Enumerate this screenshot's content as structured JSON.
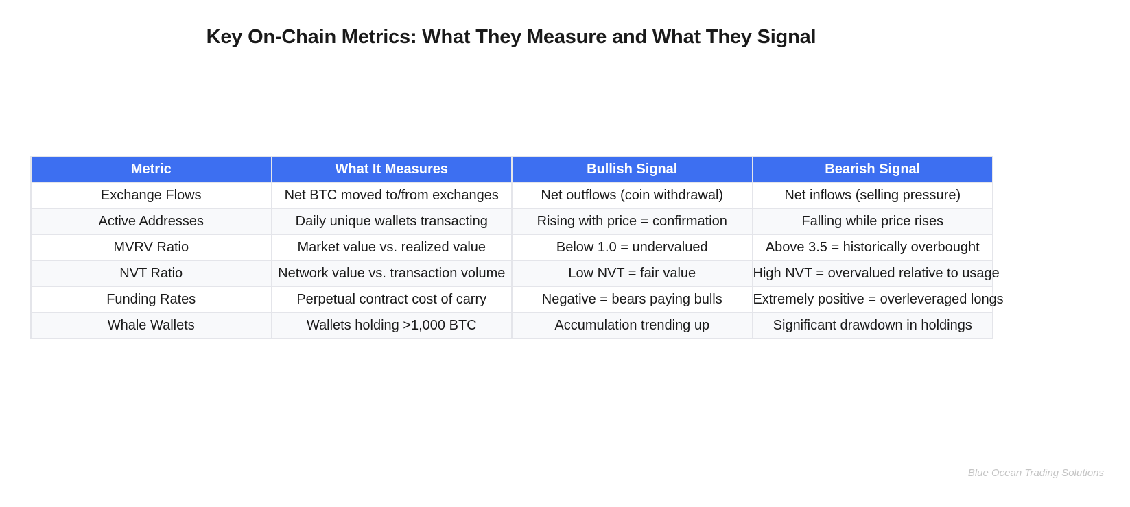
{
  "title": "Key On-Chain Metrics: What They Measure and What They Signal",
  "table": {
    "headers": [
      "Metric",
      "What It Measures",
      "Bullish Signal",
      "Bearish Signal"
    ],
    "rows": [
      [
        "Exchange Flows",
        "Net BTC moved to/from exchanges",
        "Net outflows (coin withdrawal)",
        "Net inflows (selling pressure)"
      ],
      [
        "Active Addresses",
        "Daily unique wallets transacting",
        "Rising with price = confirmation",
        "Falling while price rises"
      ],
      [
        "MVRV Ratio",
        "Market value vs. realized value",
        "Below 1.0 = undervalued",
        "Above 3.5 = historically overbought"
      ],
      [
        "NVT Ratio",
        "Network value vs. transaction volume",
        "Low NVT = fair value",
        "High NVT = overvalued relative to usage"
      ],
      [
        "Funding Rates",
        "Perpetual contract cost of carry",
        "Negative = bears paying bulls",
        "Extremely positive = overleveraged longs"
      ],
      [
        "Whale Wallets",
        "Wallets holding >1,000 BTC",
        "Accumulation trending up",
        "Significant drawdown in holdings"
      ]
    ]
  },
  "footer": "Blue Ocean Trading Solutions",
  "colors": {
    "header_bg": "#3d6ff1",
    "header_text": "#ffffff",
    "border": "#e4e5ea",
    "row_alt_bg": "#f8f9fb",
    "footer_text": "#c4c4c4"
  }
}
